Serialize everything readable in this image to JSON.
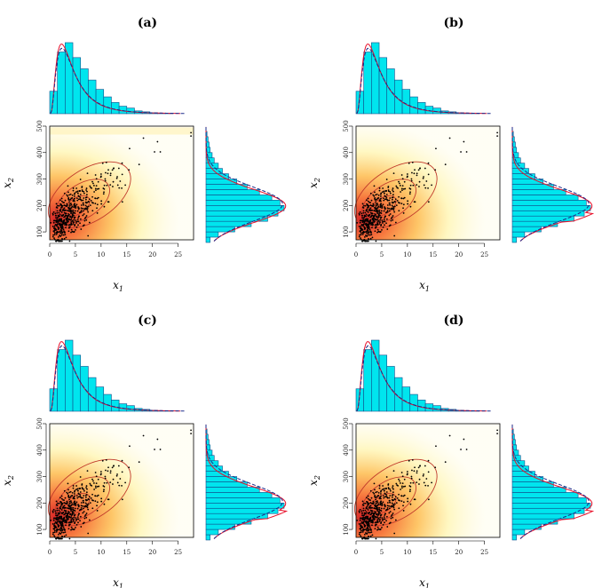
{
  "chart_data": [
    {
      "type": "scatter",
      "panel": "(a)",
      "xlabel": "x",
      "xlabel_sub": "1",
      "ylabel": "x",
      "ylabel_sub": "2",
      "xlim": [
        0,
        28
      ],
      "ylim": [
        70,
        500
      ],
      "xticks": [
        0,
        5,
        10,
        15,
        20,
        25
      ],
      "yticks": [
        100,
        200,
        300,
        400,
        500
      ]
    },
    {
      "type": "scatter",
      "panel": "(b)",
      "xlabel": "x",
      "xlabel_sub": "1",
      "ylabel": "x",
      "ylabel_sub": "2",
      "xlim": [
        0,
        28
      ],
      "ylim": [
        70,
        500
      ],
      "xticks": [
        0,
        5,
        10,
        15,
        20,
        25
      ],
      "yticks": [
        100,
        200,
        300,
        400,
        500
      ]
    },
    {
      "type": "scatter",
      "panel": "(c)",
      "xlabel": "x",
      "xlabel_sub": "1",
      "ylabel": "x",
      "ylabel_sub": "2",
      "xlim": [
        0,
        28
      ],
      "ylim": [
        70,
        500
      ],
      "xticks": [
        0,
        5,
        10,
        15,
        20,
        25
      ],
      "yticks": [
        100,
        200,
        300,
        400,
        500
      ]
    },
    {
      "type": "scatter",
      "panel": "(d)",
      "xlabel": "x",
      "xlabel_sub": "1",
      "ylabel": "x",
      "ylabel_sub": "2",
      "xlim": [
        0,
        28
      ],
      "ylim": [
        70,
        500
      ],
      "xticks": [
        0,
        5,
        10,
        15,
        20,
        25
      ],
      "yticks": [
        100,
        200,
        300,
        400,
        500
      ]
    }
  ],
  "hist_x": {
    "bin_width": 1.5,
    "counts": [
      12,
      33,
      38,
      30,
      24,
      18,
      13,
      9,
      6,
      4,
      3,
      1.5,
      1,
      0.5,
      0.3,
      0.3
    ]
  },
  "hist_y": {
    "bins": [
      60,
      80,
      100,
      120,
      140,
      160,
      180,
      200,
      220,
      240,
      260,
      280,
      300,
      320,
      340,
      360,
      380,
      400,
      420,
      440,
      460,
      480
    ],
    "counts": [
      2,
      6,
      14,
      22,
      30,
      35,
      38,
      36,
      32,
      26,
      20,
      15,
      11,
      8,
      6,
      4,
      3,
      2,
      1.5,
      1,
      0.5
    ]
  },
  "colors": {
    "hist_fill": "#00e5ee",
    "hist_edge": "#104e8b",
    "red_curve": "#e8102a",
    "blue_curve": "#1c2a8a",
    "contour": "#c0392b",
    "points": "#000000"
  }
}
